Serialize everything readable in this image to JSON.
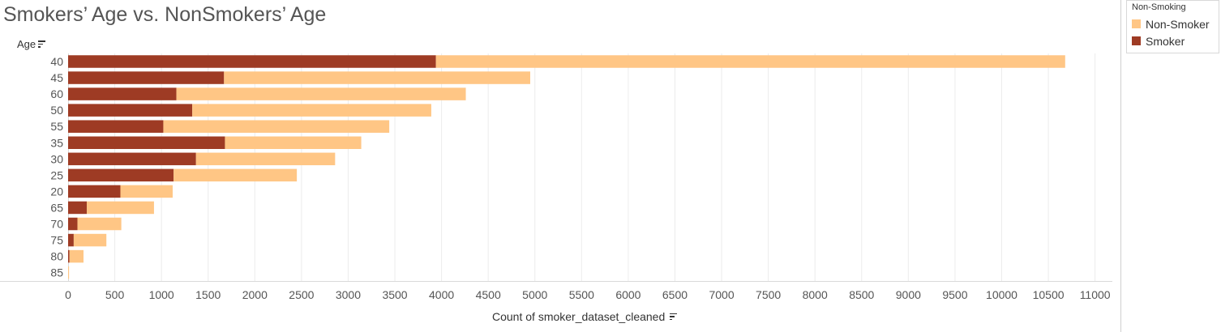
{
  "chart_data": {
    "type": "bar",
    "orientation": "horizontal",
    "stacked": true,
    "title": "Smokers’ Age vs. NonSmokers’ Age",
    "ylabel": "Age",
    "xlabel": "Count of smoker_dataset_cleaned",
    "categories": [
      "40",
      "45",
      "60",
      "50",
      "55",
      "35",
      "30",
      "25",
      "20",
      "65",
      "70",
      "75",
      "80",
      "85"
    ],
    "series": [
      {
        "name": "Smoker",
        "color": "#9e3b24",
        "values": [
          3940,
          1670,
          1160,
          1330,
          1020,
          1680,
          1370,
          1130,
          560,
          200,
          100,
          60,
          15,
          0
        ]
      },
      {
        "name": "Non-Smoker",
        "color": "#ffc685",
        "values": [
          6740,
          3280,
          3100,
          2560,
          2420,
          1460,
          1490,
          1320,
          560,
          720,
          470,
          350,
          150,
          10
        ]
      }
    ],
    "xlim": [
      0,
      11000
    ],
    "xticks": [
      0,
      500,
      1000,
      1500,
      2000,
      2500,
      3000,
      3500,
      4000,
      4500,
      5000,
      5500,
      6000,
      6500,
      7000,
      7500,
      8000,
      8500,
      9000,
      9500,
      10000,
      10500,
      11000
    ],
    "grid": true,
    "legend": {
      "title": "Non-Smoking",
      "placement": "top-right",
      "items": [
        {
          "label": "Non-Smoker",
          "color": "#ffc685"
        },
        {
          "label": "Smoker",
          "color": "#9e3b24"
        }
      ]
    }
  }
}
